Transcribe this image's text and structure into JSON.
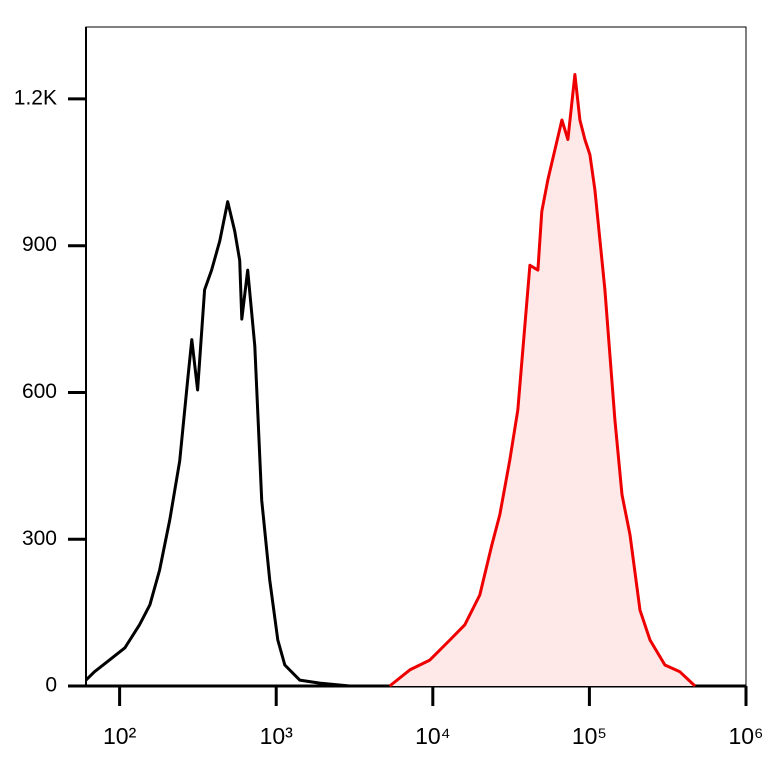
{
  "chart_data": {
    "type": "line",
    "log_x": true,
    "xlim": [
      61,
      1000000
    ],
    "ylim": [
      0,
      1347
    ],
    "xticks": [
      {
        "value": 100,
        "label": "10²"
      },
      {
        "value": 1000,
        "label": "10³"
      },
      {
        "value": 10000,
        "label": "10⁴"
      },
      {
        "value": 100000,
        "label": "10⁵"
      },
      {
        "value": 1000000,
        "label": "10⁶"
      }
    ],
    "yticks": [
      0,
      300,
      600,
      900,
      {
        "value": 1200,
        "label": "1.2K"
      }
    ],
    "series": [
      {
        "color": "#000000",
        "fill": null,
        "x": [
          61,
          69,
          86,
          108,
          134,
          156,
          180,
          209,
          242,
          272,
          289,
          315,
          349,
          387,
          436,
          490,
          543,
          585,
          603,
          658,
          730,
          808,
          909,
          1023,
          1134,
          1413,
          1896,
          2951
        ],
        "values": [
          12,
          29,
          53,
          78,
          125,
          166,
          237,
          340,
          460,
          626,
          708,
          605,
          810,
          850,
          910,
          990,
          930,
          870,
          750,
          850,
          695,
          380,
          217,
          94,
          43,
          12,
          6,
          0
        ]
      },
      {
        "color": "#ee0000",
        "fill": "#ffe8e8",
        "x": [
          5309,
          7129,
          9570,
          12850,
          16000,
          19950,
          23820,
          26790,
          31040,
          34900,
          41690,
          46880,
          49690,
          54310,
          60200,
          66690,
          72930,
          80790,
          86930,
          93560,
          100700,
          108400,
          125600,
          145500,
          161400,
          181600,
          210300,
          243700,
          303600,
          378600,
          472300
        ],
        "values": [
          0,
          33,
          53,
          94,
          125,
          186,
          288,
          350,
          462,
          564,
          860,
          850,
          970,
          1035,
          1096,
          1157,
          1117,
          1250,
          1157,
          1117,
          1086,
          1014,
          810,
          544,
          391,
          309,
          155,
          94,
          43,
          29,
          0
        ]
      }
    ]
  }
}
